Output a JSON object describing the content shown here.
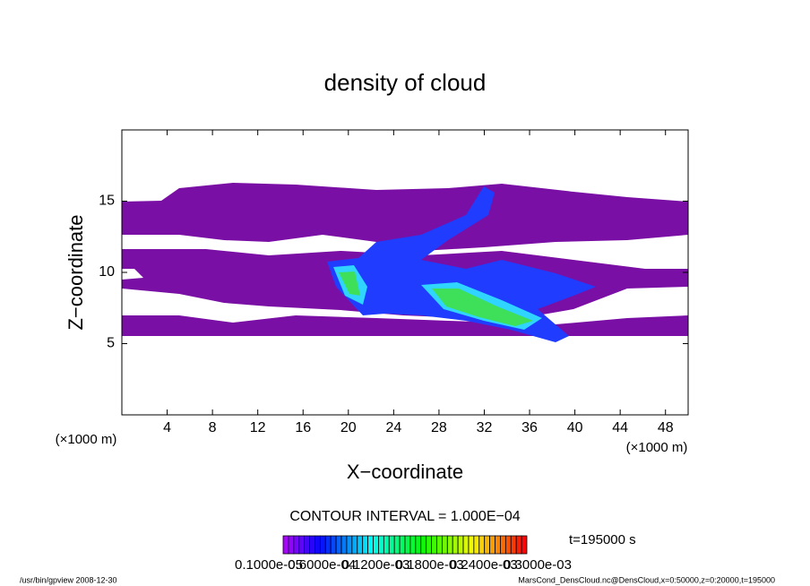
{
  "chart_data": {
    "type": "contour",
    "title": "density of cloud",
    "x_label": "X−coordinate",
    "y_label": "Z−coordinate",
    "axis_unit": "(×1000 m)",
    "xlim": [
      0,
      50
    ],
    "xticks": [
      4,
      8,
      12,
      16,
      20,
      24,
      28,
      32,
      36,
      40,
      44,
      48
    ],
    "ylim": [
      0,
      20
    ],
    "yticks": [
      5,
      10,
      15
    ],
    "contour_interval": "CONTOUR INTERVAL = 1.000E−04",
    "time": "t=195000 s",
    "colorbar_ticks": [
      {
        "value": 1e-06,
        "label": "0.1000e-05"
      },
      {
        "value": 6e-05,
        "label": "0.6000e-04"
      },
      {
        "value": 0.00012,
        "label": "0.1200e-03"
      },
      {
        "value": 0.00018,
        "label": "0.1800e-03"
      },
      {
        "value": 0.00024,
        "label": "0.2400e-03"
      },
      {
        "value": 0.0003,
        "label": "0.3000e-03"
      }
    ],
    "footer_left": "/usr/bin/gpview  2008-12-30",
    "footer_right": "MarsCond_DensCloud.nc@DensCloud,x=0:50000,z=0:20000,t=195000"
  }
}
